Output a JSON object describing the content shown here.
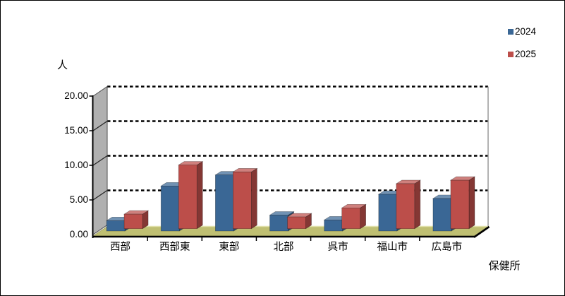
{
  "chart_data": {
    "type": "bar",
    "style": "3d-clustered-columns",
    "title": "",
    "categories": [
      "西部",
      "西部東",
      "東部",
      "北部",
      "呉市",
      "福山市",
      "広島市"
    ],
    "series": [
      {
        "name": "2024",
        "color": "#3A6795",
        "values": [
          1.5,
          6.5,
          8.1,
          2.3,
          1.6,
          5.3,
          4.7
        ]
      },
      {
        "name": "2025",
        "color": "#BC4E4A",
        "values": [
          2.1,
          9.2,
          8.2,
          1.7,
          3.0,
          6.5,
          7.0
        ]
      }
    ],
    "ylabel": "人",
    "xlabel": "保健所",
    "ylim": [
      0,
      20
    ],
    "ytick_step": 5,
    "ytick_labels": [
      "0.00",
      "5.00",
      "10.00",
      "15.00",
      "20.00"
    ],
    "grid": "horizontal-dashed-black",
    "legend_position": "top-right",
    "colors": {
      "background": "#FFFFFF",
      "side_wall": "#B0B0B0",
      "floor": "#BFBF72",
      "floor_highlight": "#E2E2AC",
      "gridline": "#000000",
      "axis": "#000000"
    }
  }
}
